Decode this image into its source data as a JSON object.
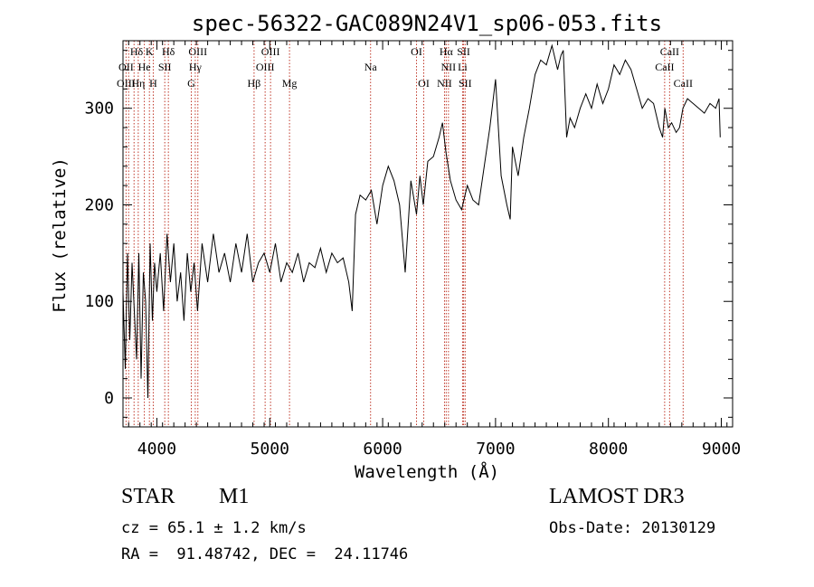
{
  "chart_data": {
    "type": "line",
    "title": "spec-56322-GAC089N24V1_sp06-053.fits",
    "xlabel": "Wavelength (Å)",
    "ylabel": "Flux (relative)",
    "xlim": [
      3700,
      9100
    ],
    "ylim": [
      -30,
      370
    ],
    "xticks": [
      4000,
      5000,
      6000,
      7000,
      8000,
      9000
    ],
    "yticks": [
      0,
      100,
      200,
      300
    ],
    "grid": false,
    "series": [
      {
        "color": "#000000",
        "x": [
          3700,
          3720,
          3740,
          3760,
          3780,
          3800,
          3820,
          3840,
          3860,
          3880,
          3900,
          3920,
          3940,
          3960,
          3980,
          4000,
          4030,
          4060,
          4090,
          4120,
          4150,
          4180,
          4210,
          4240,
          4270,
          4300,
          4330,
          4360,
          4400,
          4450,
          4500,
          4550,
          4600,
          4650,
          4700,
          4750,
          4800,
          4850,
          4900,
          4950,
          5000,
          5050,
          5100,
          5150,
          5200,
          5250,
          5300,
          5350,
          5400,
          5450,
          5500,
          5550,
          5600,
          5650,
          5700,
          5730,
          5760,
          5800,
          5850,
          5900,
          5950,
          6000,
          6050,
          6100,
          6150,
          6200,
          6250,
          6300,
          6330,
          6360,
          6400,
          6450,
          6500,
          6530,
          6560,
          6600,
          6650,
          6700,
          6750,
          6800,
          6850,
          6900,
          6950,
          7000,
          7050,
          7100,
          7130,
          7150,
          7200,
          7250,
          7300,
          7350,
          7400,
          7450,
          7500,
          7550,
          7580,
          7600,
          7630,
          7660,
          7700,
          7750,
          7800,
          7850,
          7900,
          7950,
          8000,
          8050,
          8100,
          8150,
          8200,
          8250,
          8300,
          8350,
          8400,
          8450,
          8480,
          8500,
          8530,
          8560,
          8600,
          8630,
          8660,
          8700,
          8750,
          8800,
          8850,
          8900,
          8950,
          8980,
          8990
        ],
        "y": [
          110,
          30,
          150,
          60,
          140,
          90,
          40,
          150,
          20,
          130,
          100,
          0,
          160,
          80,
          140,
          110,
          150,
          90,
          170,
          120,
          160,
          100,
          130,
          80,
          150,
          110,
          140,
          90,
          160,
          120,
          170,
          130,
          150,
          120,
          160,
          130,
          170,
          120,
          140,
          150,
          130,
          160,
          120,
          140,
          130,
          150,
          120,
          140,
          135,
          155,
          130,
          150,
          140,
          145,
          120,
          90,
          190,
          210,
          205,
          215,
          180,
          220,
          240,
          225,
          200,
          130,
          225,
          190,
          230,
          200,
          245,
          250,
          270,
          285,
          255,
          225,
          205,
          195,
          220,
          205,
          200,
          240,
          280,
          330,
          230,
          200,
          185,
          260,
          230,
          270,
          300,
          335,
          350,
          345,
          365,
          340,
          355,
          360,
          270,
          290,
          280,
          300,
          315,
          300,
          325,
          305,
          320,
          345,
          335,
          350,
          340,
          320,
          300,
          310,
          305,
          280,
          270,
          300,
          280,
          285,
          275,
          280,
          300,
          310,
          305,
          300,
          295,
          305,
          300,
          310,
          270
        ]
      }
    ],
    "line_labels": [
      {
        "label": "Hδ",
        "x": 4102,
        "row": 0
      },
      {
        "label": "K",
        "x": 3934,
        "row": 0
      },
      {
        "label": "Hδ",
        "x": 3820,
        "row": 0
      },
      {
        "label": "OIII",
        "x": 4363,
        "row": 0
      },
      {
        "label": "OIII",
        "x": 5007,
        "row": 0
      },
      {
        "label": "OI",
        "x": 6300,
        "row": 0
      },
      {
        "label": "Hα",
        "x": 6563,
        "row": 0
      },
      {
        "label": "SII",
        "x": 6717,
        "row": 0
      },
      {
        "label": "CaII",
        "x": 8542,
        "row": 0
      },
      {
        "label": "OII",
        "x": 3727,
        "row": 1
      },
      {
        "label": "He",
        "x": 3889,
        "row": 1
      },
      {
        "label": "SII",
        "x": 4070,
        "row": 1
      },
      {
        "label": "Hγ",
        "x": 4340,
        "row": 1
      },
      {
        "label": "OIII",
        "x": 4959,
        "row": 1
      },
      {
        "label": "Na",
        "x": 5893,
        "row": 1
      },
      {
        "label": "NII",
        "x": 6583,
        "row": 1
      },
      {
        "label": "Li",
        "x": 6708,
        "row": 1
      },
      {
        "label": "CaII",
        "x": 8498,
        "row": 1
      },
      {
        "label": "OIII",
        "x": 3727,
        "row": 2
      },
      {
        "label": "Hη",
        "x": 3835,
        "row": 2
      },
      {
        "label": "H",
        "x": 3968,
        "row": 2
      },
      {
        "label": "G",
        "x": 4305,
        "row": 2
      },
      {
        "label": "Hβ",
        "x": 4861,
        "row": 2
      },
      {
        "label": "Mg",
        "x": 5175,
        "row": 2
      },
      {
        "label": "OI",
        "x": 6364,
        "row": 2
      },
      {
        "label": "NII",
        "x": 6548,
        "row": 2
      },
      {
        "label": "SII",
        "x": 6731,
        "row": 2
      },
      {
        "label": "CaII",
        "x": 8662,
        "row": 2
      }
    ],
    "line_positions": [
      3727,
      3750,
      3798,
      3835,
      3889,
      3934,
      3968,
      4070,
      4102,
      4305,
      4340,
      4363,
      4861,
      4959,
      5007,
      5175,
      5893,
      6300,
      6364,
      6548,
      6563,
      6583,
      6708,
      6717,
      6731,
      8498,
      8542,
      8662
    ]
  },
  "info": {
    "object_type": "STAR",
    "subclass": "M1",
    "survey": "LAMOST DR3",
    "redshift": "cz = 65.1 ± 1.2 km/s",
    "obs_date": "Obs-Date: 20130129",
    "coords": "RA =  91.48742, DEC =  24.11746"
  },
  "colors": {
    "spectrum": "#000000",
    "line_marker": "#c0392b",
    "axis": "#000000"
  }
}
